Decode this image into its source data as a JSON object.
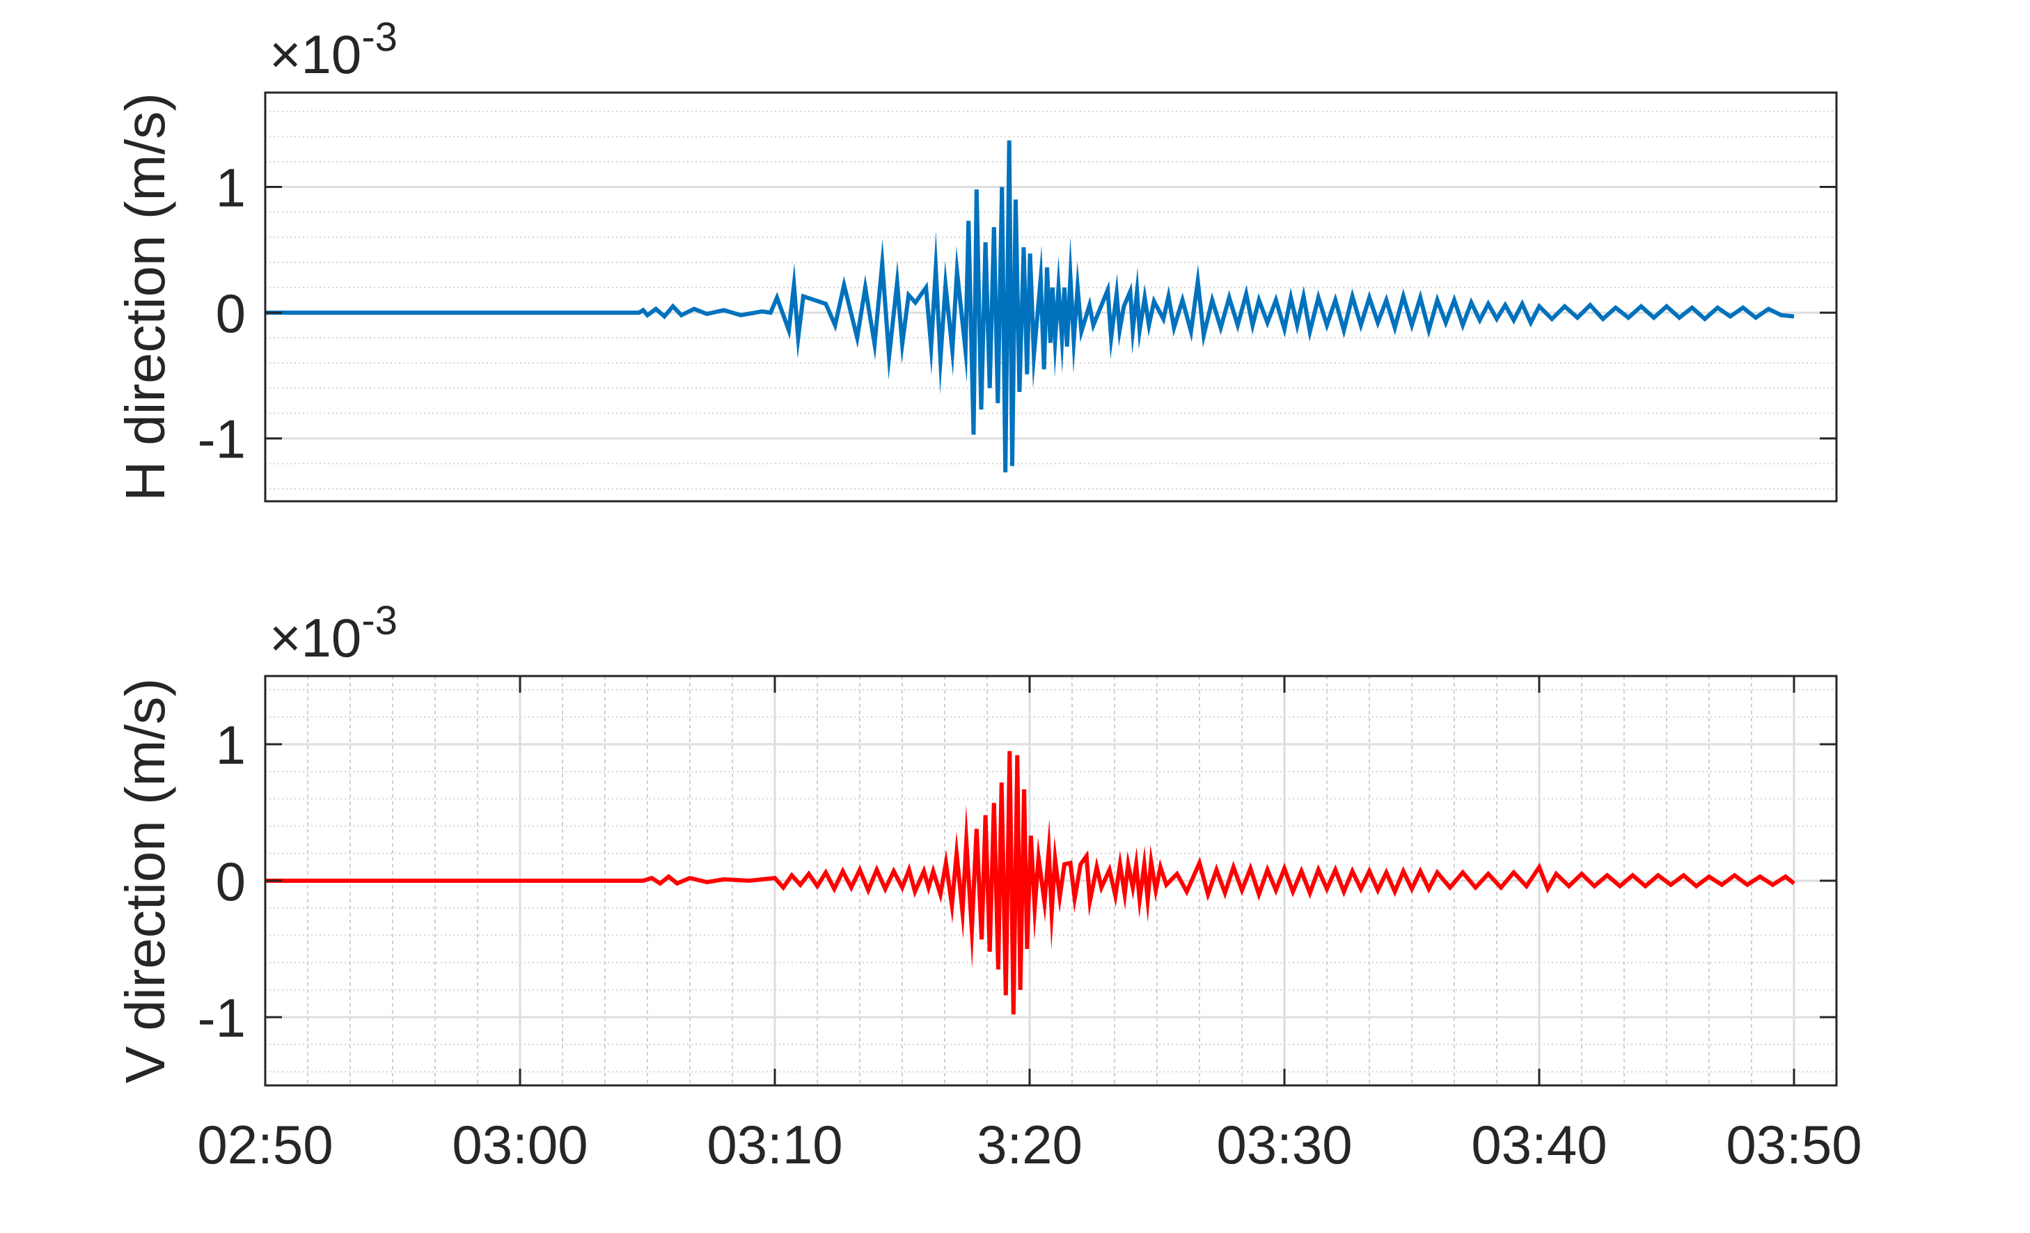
{
  "chart_data": [
    {
      "type": "line",
      "ylabel": "H direction (m/s)",
      "exponent_label": {
        "base": "×10",
        "power": "-3"
      },
      "xlim": [
        "02:50:00",
        "03:51:40"
      ],
      "ylim": [
        -1.5,
        1.75
      ],
      "yticks": [
        -1,
        0,
        1
      ],
      "ytick_labels": [
        "-1",
        "0",
        "1"
      ],
      "xticks": [],
      "xtick_labels": [],
      "grid": {
        "major_y": true,
        "minor_y": true,
        "major_x": false,
        "minor_x": false
      },
      "series": [
        {
          "color": "#0072BD",
          "t": [
            "02:50:00",
            "03:04:40",
            "03:04:50",
            "03:05:00",
            "03:05:20",
            "03:05:40",
            "03:06:00",
            "03:06:20",
            "03:06:50",
            "03:07:20",
            "03:08:00",
            "03:08:40",
            "03:09:30",
            "03:09:50",
            "03:10:05",
            "03:10:33",
            "03:10:45",
            "03:10:55",
            "03:11:07",
            "03:12:00",
            "03:12:22",
            "03:12:43",
            "03:13:14",
            "03:13:33",
            "03:13:55",
            "03:14:13",
            "03:14:29",
            "03:14:48",
            "03:15:00",
            "03:15:15",
            "03:15:31",
            "03:15:56",
            "03:16:08",
            "03:16:19",
            "03:16:30",
            "03:16:42",
            "03:16:58",
            "03:17:09",
            "03:17:29",
            "03:17:36",
            "03:17:48",
            "03:17:55",
            "03:18:06",
            "03:18:16",
            "03:18:26",
            "03:18:36",
            "03:18:45",
            "03:18:55",
            "03:19:03",
            "03:19:12",
            "03:19:19",
            "03:19:27",
            "03:19:36",
            "03:19:46",
            "03:19:54",
            "03:20:01",
            "03:20:10",
            "03:20:26",
            "03:20:34",
            "03:20:41",
            "03:20:49",
            "03:20:54",
            "03:21:00",
            "03:21:08",
            "03:21:16",
            "03:21:22",
            "03:21:28",
            "03:21:36",
            "03:21:44",
            "03:21:53",
            "03:22:02",
            "03:22:21",
            "03:22:30",
            "03:23:04",
            "03:23:12",
            "03:23:25",
            "03:23:32",
            "03:23:42",
            "03:23:57",
            "03:24:03",
            "03:24:13",
            "03:24:19",
            "03:24:31",
            "03:24:41",
            "03:24:53",
            "03:25:15",
            "03:25:27",
            "03:25:40",
            "03:26:00",
            "03:26:20",
            "03:26:36",
            "03:26:50",
            "03:27:10",
            "03:27:30",
            "03:27:50",
            "03:28:10",
            "03:28:30",
            "03:28:45",
            "03:29:00",
            "03:29:20",
            "03:29:40",
            "03:30:00",
            "03:30:15",
            "03:30:30",
            "03:30:45",
            "03:31:00",
            "03:31:20",
            "03:31:40",
            "03:32:00",
            "03:32:20",
            "03:32:40",
            "03:33:00",
            "03:33:20",
            "03:33:40",
            "03:34:00",
            "03:34:20",
            "03:34:40",
            "03:35:00",
            "03:35:20",
            "03:35:40",
            "03:36:00",
            "03:36:20",
            "03:36:40",
            "03:37:00",
            "03:37:20",
            "03:37:40",
            "03:38:00",
            "03:38:20",
            "03:38:40",
            "03:39:00",
            "03:39:20",
            "03:39:40",
            "03:40:00",
            "03:40:30",
            "03:41:00",
            "03:41:30",
            "03:42:00",
            "03:42:30",
            "03:43:00",
            "03:43:30",
            "03:44:00",
            "03:44:30",
            "03:45:00",
            "03:45:30",
            "03:46:00",
            "03:46:30",
            "03:47:00",
            "03:47:30",
            "03:48:00",
            "03:48:30",
            "03:49:00",
            "03:49:30",
            "03:50:00"
          ],
          "v": [
            0,
            0,
            0.02,
            -0.02,
            0.03,
            -0.03,
            0.05,
            -0.02,
            0.03,
            -0.01,
            0.02,
            -0.02,
            0.01,
            0.0,
            0.12,
            -0.14,
            0.22,
            -0.2,
            0.13,
            0.07,
            -0.1,
            0.22,
            -0.2,
            0.2,
            -0.25,
            0.39,
            -0.35,
            0.24,
            -0.25,
            0.14,
            0.08,
            0.2,
            -0.27,
            0.35,
            -0.37,
            0.22,
            -0.3,
            0.33,
            -0.3,
            0.73,
            -0.97,
            0.98,
            -0.77,
            0.56,
            -0.6,
            0.68,
            -0.72,
            1.0,
            -1.27,
            1.37,
            -1.22,
            0.9,
            -0.63,
            0.52,
            -0.49,
            0.47,
            -0.34,
            0.27,
            -0.45,
            0.36,
            -0.24,
            0.2,
            -0.22,
            0.2,
            -0.2,
            0.2,
            -0.27,
            0.28,
            -0.22,
            0.2,
            -0.15,
            0.06,
            -0.1,
            0.18,
            -0.2,
            0.15,
            -0.14,
            0.05,
            0.17,
            -0.14,
            0.17,
            -0.14,
            0.12,
            -0.1,
            0.09,
            -0.05,
            0.13,
            -0.12,
            0.1,
            -0.15,
            0.25,
            -0.18,
            0.1,
            -0.12,
            0.12,
            -0.1,
            0.15,
            -0.1,
            0.1,
            -0.08,
            0.1,
            -0.13,
            0.12,
            -0.1,
            0.13,
            -0.15,
            0.12,
            -0.1,
            0.1,
            -0.14,
            0.13,
            -0.1,
            0.12,
            -0.08,
            0.1,
            -0.12,
            0.13,
            -0.1,
            0.12,
            -0.14,
            0.1,
            -0.08,
            0.1,
            -0.1,
            0.08,
            -0.06,
            0.07,
            -0.05,
            0.06,
            -0.06,
            0.07,
            -0.08,
            0.05,
            -0.05,
            0.05,
            -0.04,
            0.06,
            -0.05,
            0.04,
            -0.04,
            0.05,
            -0.04,
            0.05,
            -0.04,
            0.04,
            -0.05,
            0.04,
            -0.03,
            0.04,
            -0.04,
            0.03,
            -0.02,
            -0.03
          ]
        }
      ]
    },
    {
      "type": "line",
      "ylabel": "V direction (m/s)",
      "exponent_label": {
        "base": "×10",
        "power": "-3"
      },
      "xlim": [
        "02:50:00",
        "03:51:40"
      ],
      "ylim": [
        -1.5,
        1.5
      ],
      "yticks": [
        -1,
        0,
        1
      ],
      "ytick_labels": [
        "-1",
        "0",
        "1"
      ],
      "xticks": [
        "02:50:00",
        "03:00:00",
        "03:10:00",
        "03:20:00",
        "03:30:00",
        "03:40:00",
        "03:50:00"
      ],
      "xtick_labels": [
        "02:50",
        "03:00",
        "03:10",
        "3:20",
        "03:30",
        "03:40",
        "03:50"
      ],
      "grid": {
        "major_y": true,
        "minor_y": true,
        "major_x": true,
        "minor_x": true
      },
      "series": [
        {
          "color": "#FF0000",
          "t": [
            "02:50:00",
            "03:04:50",
            "03:05:10",
            "03:05:30",
            "03:05:50",
            "03:06:10",
            "03:06:40",
            "03:07:20",
            "03:08:00",
            "03:09:00",
            "03:10:00",
            "03:10:20",
            "03:10:40",
            "03:11:00",
            "03:11:20",
            "03:11:40",
            "03:12:00",
            "03:12:20",
            "03:12:40",
            "03:13:00",
            "03:13:20",
            "03:13:40",
            "03:14:00",
            "03:14:20",
            "03:14:40",
            "03:15:00",
            "03:15:16",
            "03:15:30",
            "03:15:51",
            "03:16:02",
            "03:16:13",
            "03:16:30",
            "03:16:43",
            "03:16:57",
            "03:17:08",
            "03:17:22",
            "03:17:31",
            "03:17:44",
            "03:17:55",
            "03:18:07",
            "03:18:16",
            "03:18:26",
            "03:18:36",
            "03:18:46",
            "03:18:54",
            "03:19:04",
            "03:19:13",
            "03:19:22",
            "03:19:31",
            "03:19:38",
            "03:19:47",
            "03:19:54",
            "03:20:03",
            "03:20:12",
            "03:20:21",
            "03:20:35",
            "03:20:45",
            "03:20:52",
            "03:21:00",
            "03:21:11",
            "03:21:22",
            "03:21:36",
            "03:21:46",
            "03:22:00",
            "03:22:14",
            "03:22:22",
            "03:22:38",
            "03:22:49",
            "03:23:08",
            "03:23:22",
            "03:23:33",
            "03:23:44",
            "03:23:52",
            "03:24:03",
            "03:24:11",
            "03:24:19",
            "03:24:30",
            "03:24:38",
            "03:24:46",
            "03:24:57",
            "03:25:08",
            "03:25:22",
            "03:25:47",
            "03:26:10",
            "03:26:40",
            "03:27:00",
            "03:27:20",
            "03:27:40",
            "03:28:00",
            "03:28:20",
            "03:28:40",
            "03:29:00",
            "03:29:20",
            "03:29:40",
            "03:30:00",
            "03:30:20",
            "03:30:40",
            "03:31:00",
            "03:31:20",
            "03:31:40",
            "03:32:00",
            "03:32:20",
            "03:32:40",
            "03:33:00",
            "03:33:20",
            "03:33:40",
            "03:34:00",
            "03:34:20",
            "03:34:40",
            "03:35:00",
            "03:35:20",
            "03:35:40",
            "03:36:00",
            "03:36:30",
            "03:37:00",
            "03:37:30",
            "03:38:00",
            "03:38:30",
            "03:39:00",
            "03:39:30",
            "03:40:00",
            "03:40:20",
            "03:40:40",
            "03:41:10",
            "03:41:40",
            "03:42:10",
            "03:42:40",
            "03:43:10",
            "03:43:40",
            "03:44:10",
            "03:44:40",
            "03:45:10",
            "03:45:40",
            "03:46:10",
            "03:46:40",
            "03:47:10",
            "03:47:40",
            "03:48:10",
            "03:48:40",
            "03:49:10",
            "03:49:40",
            "03:50:00"
          ],
          "v": [
            0,
            0,
            0.02,
            -0.02,
            0.03,
            -0.02,
            0.02,
            -0.01,
            0.01,
            0.0,
            0.02,
            -0.05,
            0.04,
            -0.03,
            0.05,
            -0.04,
            0.06,
            -0.06,
            0.07,
            -0.05,
            0.08,
            -0.07,
            0.08,
            -0.06,
            0.07,
            -0.05,
            0.08,
            -0.08,
            0.07,
            -0.05,
            0.07,
            -0.1,
            0.13,
            -0.18,
            0.2,
            -0.23,
            0.29,
            -0.36,
            0.38,
            -0.43,
            0.48,
            -0.52,
            0.57,
            -0.65,
            0.72,
            -0.84,
            0.95,
            -0.98,
            0.92,
            -0.8,
            0.67,
            -0.5,
            0.33,
            -0.2,
            0.17,
            -0.16,
            0.22,
            -0.23,
            0.16,
            -0.12,
            0.12,
            0.13,
            -0.13,
            0.12,
            0.18,
            -0.15,
            0.1,
            -0.05,
            0.08,
            -0.11,
            0.12,
            -0.1,
            0.12,
            -0.05,
            0.12,
            -0.14,
            0.12,
            -0.14,
            0.14,
            -0.07,
            0.1,
            -0.03,
            0.05,
            -0.08,
            0.13,
            -0.1,
            0.08,
            -0.09,
            0.1,
            -0.07,
            0.09,
            -0.1,
            0.08,
            -0.07,
            0.09,
            -0.08,
            0.07,
            -0.09,
            0.08,
            -0.06,
            0.08,
            -0.08,
            0.07,
            -0.06,
            0.07,
            -0.07,
            0.06,
            -0.08,
            0.07,
            -0.06,
            0.07,
            -0.06,
            0.06,
            -0.05,
            0.06,
            -0.05,
            0.05,
            -0.05,
            0.06,
            -0.04,
            0.1,
            -0.06,
            0.05,
            -0.04,
            0.05,
            -0.04,
            0.04,
            -0.04,
            0.04,
            -0.04,
            0.04,
            -0.03,
            0.04,
            -0.04,
            0.03,
            -0.03,
            0.04,
            -0.03,
            0.03,
            -0.03,
            0.03,
            -0.02
          ]
        }
      ]
    }
  ]
}
